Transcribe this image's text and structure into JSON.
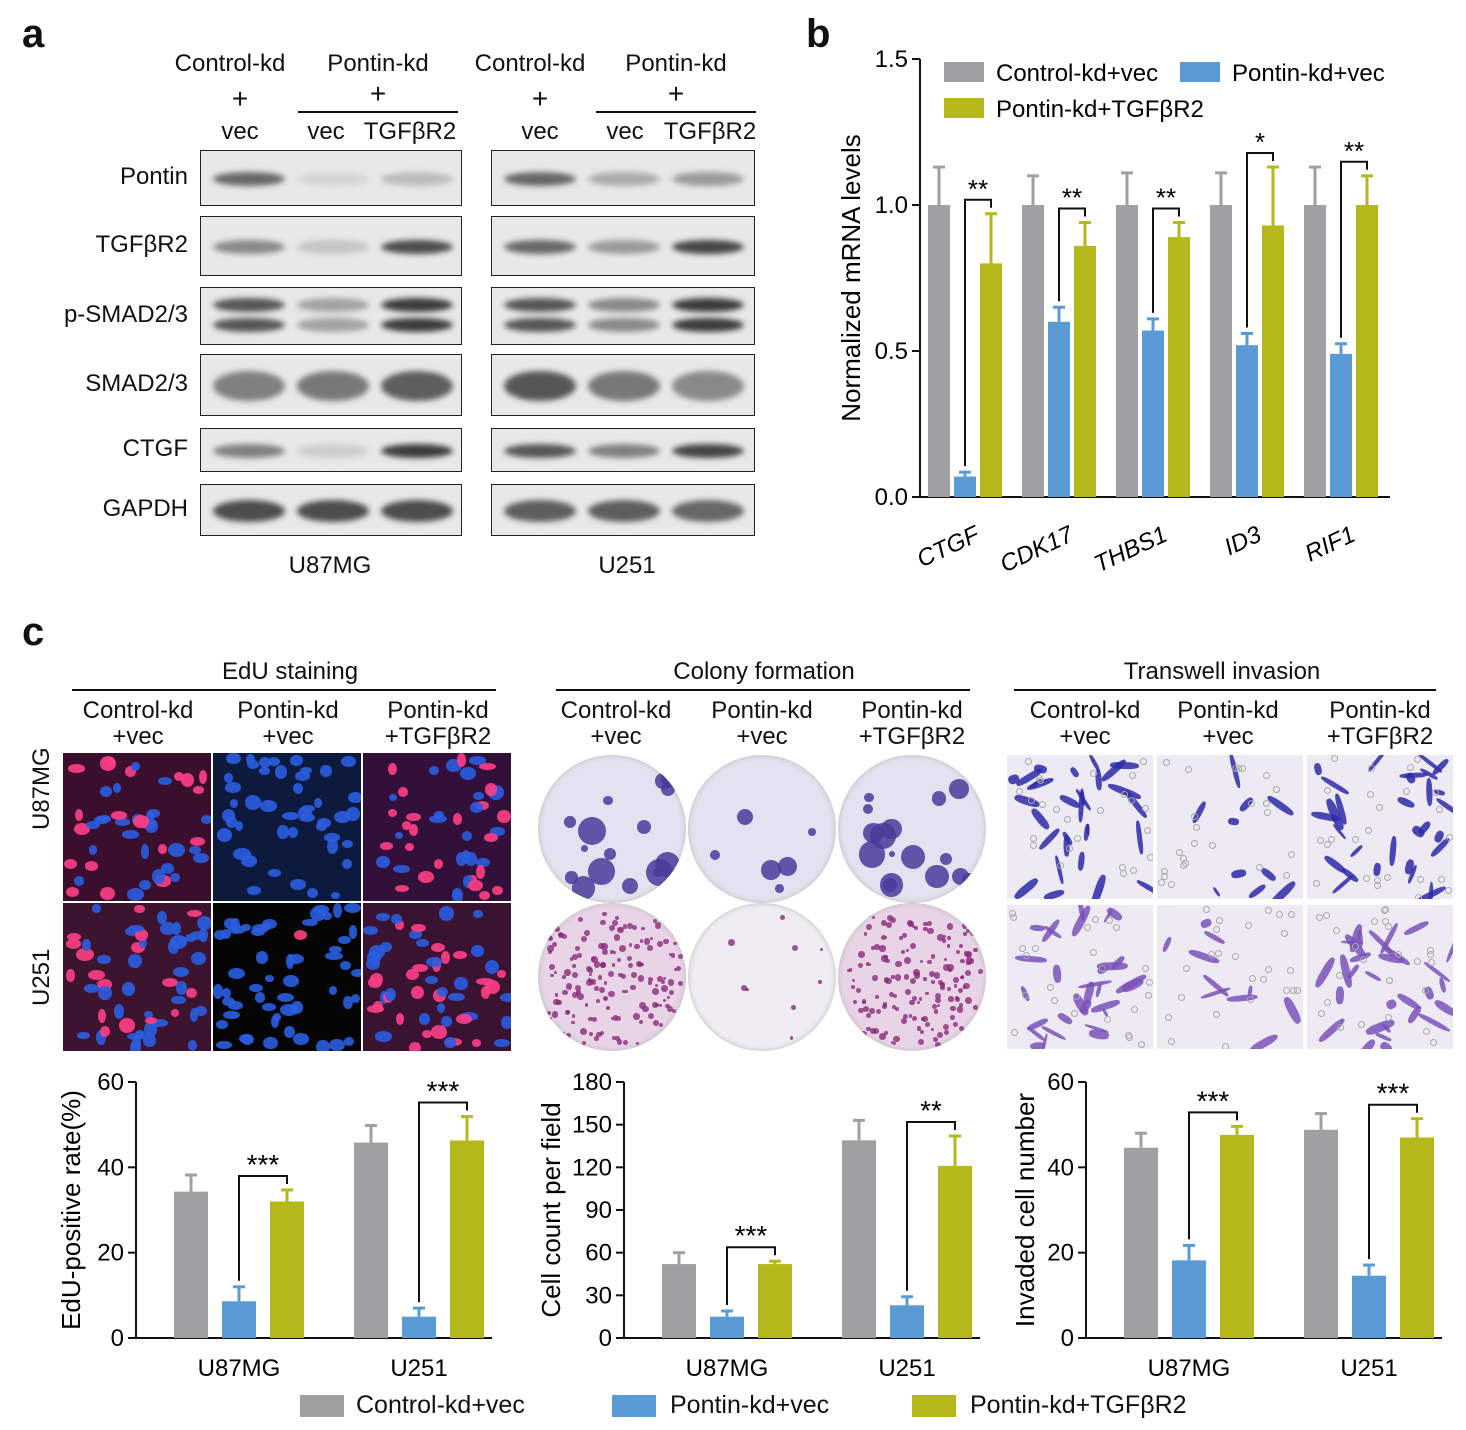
{
  "colors": {
    "control": "#a0a0a2",
    "pontin_vec": "#5b9bd5",
    "pontin_tgf": "#b5b81a"
  },
  "panel_labels": [
    "a",
    "b",
    "c"
  ],
  "panel_a": {
    "group_top": [
      "Control-kd",
      "Pontin-kd",
      "Control-kd",
      "Pontin-kd"
    ],
    "plus": "+",
    "lanes": [
      "vec",
      "vec",
      "TGFβR2",
      "vec",
      "vec",
      "TGFβR2"
    ],
    "proteins": [
      "Pontin",
      "TGFβR2",
      "p-SMAD2/3",
      "SMAD2/3",
      "CTGF",
      "GAPDH"
    ],
    "cell_lines": [
      "U87MG",
      "U251"
    ]
  },
  "panel_c": {
    "sections": [
      "EdU staining",
      "Colony formation",
      "Transwell invasion"
    ],
    "groups": [
      [
        "Control-kd",
        "+vec"
      ],
      [
        "Pontin-kd",
        "+vec"
      ],
      [
        "Pontin-kd",
        "+TGFβR2"
      ]
    ],
    "row_labels": [
      "U87MG",
      "U251"
    ]
  },
  "legend": [
    "Control-kd+vec",
    "Pontin-kd+vec",
    "Pontin-kd+TGFβR2"
  ],
  "chart_data": [
    {
      "type": "bar",
      "id": "b",
      "ylabel": "Normalized mRNA levels",
      "ylim": [
        0,
        1.5
      ],
      "yticks": [
        "0.0",
        "0.5",
        "1.0",
        "1.5"
      ],
      "categories": [
        "CTGF",
        "CDK17",
        "THBS1",
        "ID3",
        "RIF1"
      ],
      "series": [
        {
          "name": "Control-kd+vec",
          "values": [
            1.0,
            1.0,
            1.0,
            1.0,
            1.0
          ],
          "errors": [
            0.13,
            0.1,
            0.11,
            0.11,
            0.13
          ]
        },
        {
          "name": "Pontin-kd+vec",
          "values": [
            0.07,
            0.6,
            0.57,
            0.52,
            0.49
          ],
          "errors": [
            0.015,
            0.05,
            0.04,
            0.04,
            0.035
          ]
        },
        {
          "name": "Pontin-kd+TGFβR2",
          "values": [
            0.8,
            0.86,
            0.89,
            0.93,
            1.0
          ],
          "errors": [
            0.17,
            0.08,
            0.05,
            0.2,
            0.1
          ]
        }
      ],
      "significance": [
        "**",
        "**",
        "**",
        "*",
        "**"
      ],
      "legend_position": "top"
    },
    {
      "type": "bar",
      "id": "edu",
      "ylabel": "EdU-positive rate(%)",
      "ylim": [
        0,
        60
      ],
      "yticks": [
        "0",
        "20",
        "40",
        "60"
      ],
      "categories": [
        "U87MG",
        "U251"
      ],
      "series": [
        {
          "name": "Control-kd+vec",
          "values": [
            34.3,
            45.8
          ],
          "errors": [
            3.9,
            4.0
          ]
        },
        {
          "name": "Pontin-kd+vec",
          "values": [
            8.6,
            5.0
          ],
          "errors": [
            3.4,
            2.0
          ]
        },
        {
          "name": "Pontin-kd+TGFβR2",
          "values": [
            32.0,
            46.3
          ],
          "errors": [
            2.7,
            5.6
          ]
        }
      ],
      "significance": [
        "***",
        "***"
      ]
    },
    {
      "type": "bar",
      "id": "colony",
      "ylabel": "Cell count per field",
      "ylim": [
        0,
        180
      ],
      "yticks": [
        "0",
        "30",
        "60",
        "90",
        "120",
        "150",
        "180"
      ],
      "categories": [
        "U87MG",
        "U251"
      ],
      "series": [
        {
          "name": "Control-kd+vec",
          "values": [
            52,
            139
          ],
          "errors": [
            8,
            14
          ]
        },
        {
          "name": "Pontin-kd+vec",
          "values": [
            15,
            23
          ],
          "errors": [
            4,
            6
          ]
        },
        {
          "name": "Pontin-kd+TGFβR2",
          "values": [
            52,
            121
          ],
          "errors": [
            2,
            21
          ]
        }
      ],
      "significance": [
        "***",
        "**"
      ]
    },
    {
      "type": "bar",
      "id": "invasion",
      "ylabel": "Invaded cell number",
      "ylim": [
        0,
        60
      ],
      "yticks": [
        "0",
        "20",
        "40",
        "60"
      ],
      "categories": [
        "U87MG",
        "U251"
      ],
      "series": [
        {
          "name": "Control-kd+vec",
          "values": [
            44.6,
            48.8
          ],
          "errors": [
            3.4,
            3.8
          ]
        },
        {
          "name": "Pontin-kd+vec",
          "values": [
            18.2,
            14.6
          ],
          "errors": [
            3.5,
            2.5
          ]
        },
        {
          "name": "Pontin-kd+TGFβR2",
          "values": [
            47.6,
            47.0
          ],
          "errors": [
            2.0,
            4.4
          ]
        }
      ],
      "significance": [
        "***",
        "***"
      ]
    }
  ]
}
